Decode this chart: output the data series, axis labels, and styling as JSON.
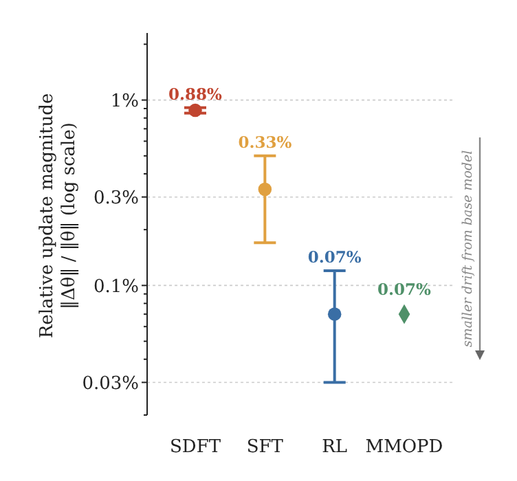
{
  "chart_data": {
    "type": "scatter",
    "ylabel": "Relative update magnitude\n‖Δθ‖ / ‖θ‖   (log scale)",
    "categories": [
      "SDFT",
      "SFT",
      "RL",
      "MMOPD"
    ],
    "series": [
      {
        "marker": "circle",
        "colors": [
          "#c0452f",
          "#e0a040",
          "#3a6ea5",
          null
        ],
        "values": [
          0.88,
          0.33,
          0.07,
          null
        ],
        "errors": [
          [
            0.85,
            0.91
          ],
          [
            0.17,
            0.5
          ],
          [
            0.03,
            0.12
          ],
          null
        ],
        "value_labels": [
          "0.88%",
          "0.33%",
          "0.07%",
          null
        ]
      },
      {
        "marker": "diamond",
        "colors": [
          null,
          null,
          null,
          "#4e9068"
        ],
        "values": [
          null,
          null,
          null,
          0.07
        ],
        "value_labels": [
          null,
          null,
          null,
          "0.07%"
        ]
      }
    ],
    "log": "y",
    "ylim": [
      0.02,
      2.3
    ],
    "yticks": [
      {
        "value": 0.02,
        "label": null
      },
      {
        "value": 0.03,
        "label": "0.03%"
      },
      {
        "value": 0.04,
        "label": null
      },
      {
        "value": 0.05,
        "label": null
      },
      {
        "value": 0.06,
        "label": null
      },
      {
        "value": 0.07,
        "label": null
      },
      {
        "value": 0.08,
        "label": null
      },
      {
        "value": 0.09,
        "label": null
      },
      {
        "value": 0.1,
        "label": "0.1%"
      },
      {
        "value": 0.2,
        "label": null
      },
      {
        "value": 0.3,
        "label": "0.3%"
      },
      {
        "value": 0.4,
        "label": null
      },
      {
        "value": 0.5,
        "label": null
      },
      {
        "value": 0.6,
        "label": null
      },
      {
        "value": 0.7,
        "label": null
      },
      {
        "value": 0.8,
        "label": null
      },
      {
        "value": 0.9,
        "label": null
      },
      {
        "value": 1,
        "label": "1%"
      },
      {
        "value": 2,
        "label": null
      }
    ],
    "grid": "y",
    "annotations": [
      "smaller drift from base model"
    ]
  }
}
